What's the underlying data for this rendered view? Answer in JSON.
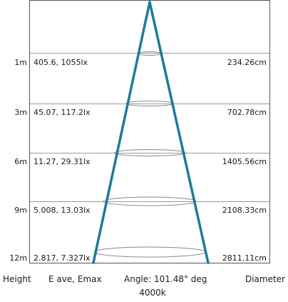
{
  "diagram": {
    "rows": [
      {
        "height": "1m",
        "illuminance": "405.6, 1055lx",
        "diameter": "234.26cm"
      },
      {
        "height": "3m",
        "illuminance": "45.07, 117.2lx",
        "diameter": "702.78cm"
      },
      {
        "height": "6m",
        "illuminance": "11.27, 29.31lx",
        "diameter": "1405.56cm"
      },
      {
        "height": "9m",
        "illuminance": "5.008, 13.03lx",
        "diameter": "2108.33cm"
      },
      {
        "height": "12m",
        "illuminance": "2.817, 7.327lx",
        "diameter": "2811.11cm"
      }
    ],
    "footer": {
      "height_label": "Height",
      "illuminance_label": "E ave, Emax",
      "angle_label": "Angle: 101.48° deg",
      "diameter_label": "Diameter",
      "color_temp": "4000k"
    },
    "colors": {
      "beam": "#1f7a9a",
      "frame": "#555555",
      "rule": "#9a9a9a",
      "ellipse": "#8a8a8a"
    }
  }
}
